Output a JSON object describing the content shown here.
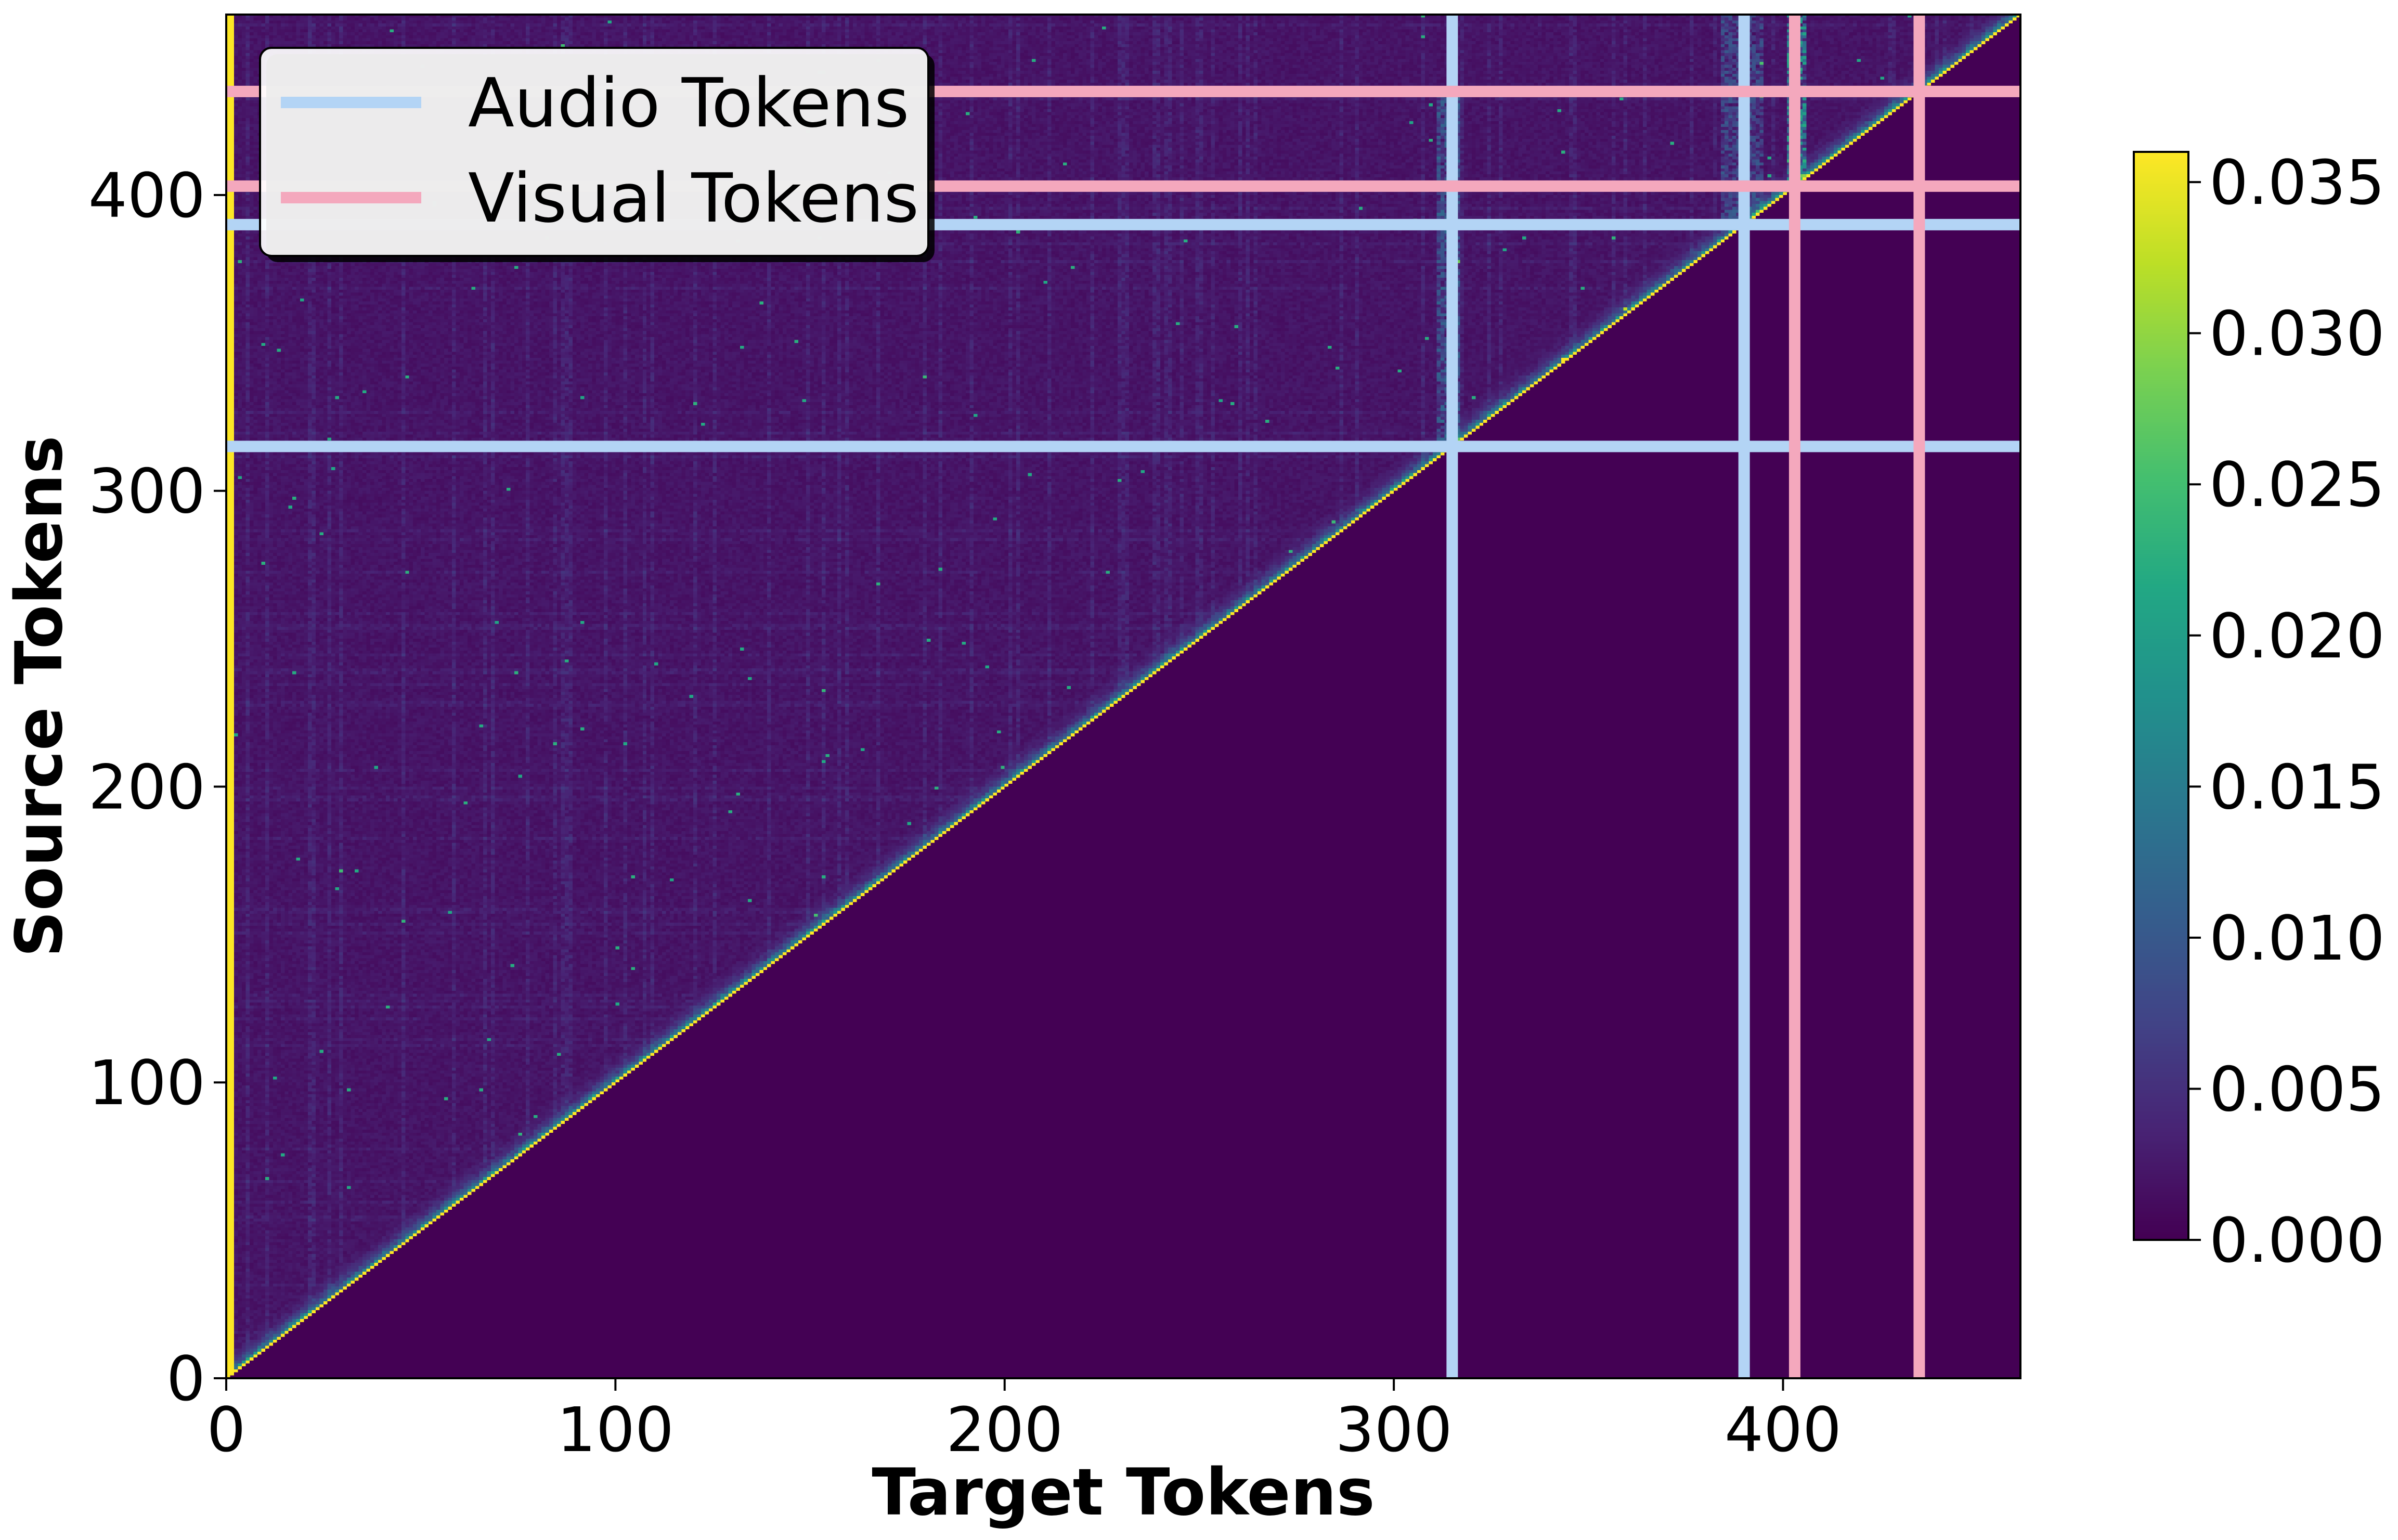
{
  "chart_data": {
    "type": "heatmap",
    "title": "",
    "xlabel": "Target Tokens",
    "ylabel": "Source Tokens",
    "n_tokens": 461,
    "xlim": [
      0,
      461
    ],
    "ylim": [
      0,
      461
    ],
    "x_ticks": [
      {
        "value": 0,
        "label": "0"
      },
      {
        "value": 100,
        "label": "100"
      },
      {
        "value": 200,
        "label": "200"
      },
      {
        "value": 300,
        "label": "300"
      },
      {
        "value": 400,
        "label": "400"
      }
    ],
    "y_ticks": [
      {
        "value": 0,
        "label": "0"
      },
      {
        "value": 100,
        "label": "100"
      },
      {
        "value": 200,
        "label": "200"
      },
      {
        "value": 300,
        "label": "300"
      },
      {
        "value": 400,
        "label": "400"
      }
    ],
    "colormap": "viridis",
    "colorbar": {
      "min": 0.0,
      "max": 0.036,
      "ticks": [
        {
          "value": 0.0,
          "label": "0.000"
        },
        {
          "value": 0.005,
          "label": "0.005"
        },
        {
          "value": 0.01,
          "label": "0.010"
        },
        {
          "value": 0.015,
          "label": "0.015"
        },
        {
          "value": 0.02,
          "label": "0.020"
        },
        {
          "value": 0.025,
          "label": "0.025"
        },
        {
          "value": 0.03,
          "label": "0.030"
        },
        {
          "value": 0.035,
          "label": "0.035"
        }
      ]
    },
    "structure": {
      "mask": "upper-triangular (source >= target); lower region is 0.000",
      "diagonal_value": 0.036,
      "first_column_value": 0.036
    },
    "series": [
      {
        "name": "Audio Tokens",
        "color": "#b3d4f5",
        "boundaries": [
          315,
          390
        ]
      },
      {
        "name": "Visual Tokens",
        "color": "#f4a8bd",
        "boundaries": [
          403,
          435
        ]
      }
    ],
    "legend": {
      "placement": "upper-left"
    },
    "grid": false
  }
}
